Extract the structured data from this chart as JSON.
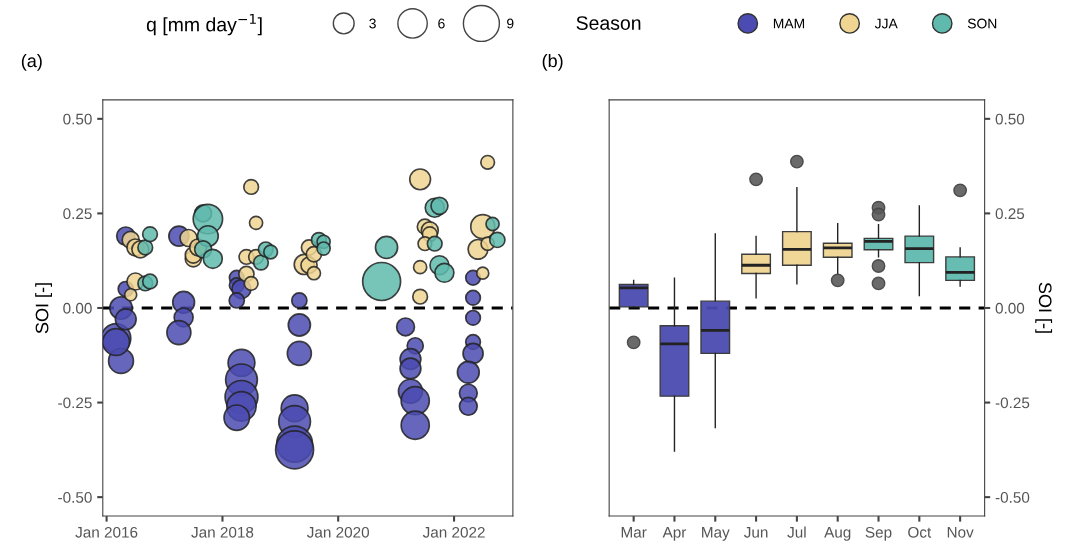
{
  "chart_data": [
    {
      "type": "bubble",
      "title": "(a)",
      "ylabel": "SOI [-]",
      "legend_title": [
        "q [mm day$^{−1}$]",
        "Season"
      ],
      "legend": "top",
      "size_legend": [
        3,
        6,
        9
      ],
      "xlim": [
        "2015-12-08",
        "2023-01-07"
      ],
      "xticks": [
        {
          "value": "2016-01-01",
          "label": "Jan 2016"
        },
        {
          "value": "2018-01-01",
          "label": "Jan 2018"
        },
        {
          "value": "2020-01-01",
          "label": "Jan 2020"
        },
        {
          "value": "2022-01-01",
          "label": "Jan 2022"
        }
      ],
      "ylim": [
        -0.55,
        0.55
      ],
      "yticks": [
        {
          "value": 0.5,
          "label": "0.50"
        },
        {
          "value": 0.25,
          "label": "0.25"
        },
        {
          "value": 0,
          "label": "0.00"
        },
        {
          "value": -0.25,
          "label": "-0.25"
        },
        {
          "value": -0.5,
          "label": "-0.50"
        }
      ],
      "ref_lines": [
        {
          "axis": "y",
          "value": 0,
          "color": "#000000",
          "line_style": "dashed"
        }
      ],
      "series": [
        {
          "name": "MAM",
          "color": "#4b4bb2",
          "x": [
            "2016-03",
            "2016-04",
            "2016-04",
            "2016-05",
            "2016-05",
            "2016-05",
            "2016-03",
            "2017-04",
            "2017-05",
            "2017-05",
            "2017-04",
            "2018-04",
            "2018-04",
            "2018-05",
            "2018-04",
            "2018-05",
            "2018-05",
            "2018-05",
            "2018-05",
            "2018-04",
            "2019-05",
            "2019-05",
            "2019-05",
            "2019-04",
            "2019-04",
            "2019-04",
            "2019-04",
            "2021-03",
            "2021-05",
            "2021-04",
            "2021-04",
            "2021-04",
            "2021-05",
            "2021-05",
            "2022-05",
            "2022-05",
            "2022-05",
            "2022-05",
            "2022-05",
            "2022-04",
            "2022-04",
            "2022-04"
          ],
          "values": [
            -0.08,
            -0.14,
            0.0,
            0.19,
            0.05,
            -0.03,
            -0.09,
            0.19,
            0.015,
            -0.025,
            -0.065,
            0.08,
            0.06,
            0.05,
            0.02,
            -0.145,
            -0.19,
            -0.235,
            -0.26,
            -0.29,
            0.02,
            -0.045,
            -0.12,
            -0.265,
            -0.3,
            -0.36,
            -0.375,
            -0.05,
            -0.1,
            -0.135,
            -0.16,
            -0.22,
            -0.245,
            -0.31,
            0.08,
            0.027,
            -0.026,
            -0.09,
            -0.12,
            -0.17,
            -0.225,
            -0.26
          ],
          "sizes": [
            6,
            4.3,
            3.5,
            2.3,
            1.6,
            3,
            5,
            2.8,
            3.3,
            2.5,
            4,
            1.5,
            1.5,
            2.5,
            1.6,
            5,
            7,
            7.5,
            6,
            4.5,
            1.6,
            3.4,
            4,
            5,
            7,
            9,
            10,
            2.2,
            1.8,
            3,
            3,
            4,
            5.5,
            5.5,
            1.5,
            1.5,
            1.5,
            1.5,
            2.8,
            3.3,
            2.2,
            2.2
          ]
        },
        {
          "name": "JJA",
          "color": "#f0d592",
          "x": [
            "2016-06",
            "2016-07",
            "2016-08",
            "2016-07",
            "2016-06",
            "2017-06",
            "2017-07",
            "2017-07",
            "2017-08",
            "2018-07",
            "2018-08",
            "2018-06",
            "2018-08",
            "2018-06",
            "2018-07",
            "2019-06",
            "2019-07",
            "2019-07",
            "2019-08",
            "2019-08",
            "2021-06",
            "2021-07",
            "2021-08",
            "2021-08",
            "2021-07",
            "2021-06",
            "2021-06",
            "2022-08",
            "2022-07",
            "2022-06",
            "2022-08",
            "2022-07"
          ],
          "values": [
            0.18,
            0.16,
            0.155,
            0.07,
            0.035,
            0.185,
            0.13,
            0.14,
            0.16,
            0.32,
            0.225,
            0.135,
            0.135,
            0.09,
            0.065,
            0.115,
            0.113,
            0.16,
            0.142,
            0.092,
            0.34,
            0.215,
            0.205,
            0.195,
            0.17,
            0.108,
            0.03,
            0.385,
            0.215,
            0.155,
            0.17,
            0.092
          ],
          "sizes": [
            2,
            2,
            2,
            2,
            1,
            2,
            1.8,
            1.8,
            2,
            1.5,
            1.2,
            1.5,
            1.5,
            1.6,
            1.3,
            2.8,
            1.8,
            1.6,
            1.6,
            1.2,
            3,
            1.6,
            2,
            1.5,
            1.3,
            1.2,
            1.5,
            1.3,
            4,
            2.7,
            1.2,
            1
          ]
        },
        {
          "name": "SON",
          "color": "#5fbaad",
          "x": [
            "2016-09",
            "2016-10",
            "2016-09",
            "2016-10",
            "2017-09",
            "2017-10",
            "2017-10",
            "2017-09",
            "2017-11",
            "2018-09",
            "2018-10",
            "2018-11",
            "2019-09",
            "2019-10",
            "2019-10",
            "2020-10",
            "2020-11",
            "2021-09",
            "2021-10",
            "2021-09",
            "2021-10",
            "2021-11",
            "2022-09",
            "2022-10"
          ],
          "values": [
            0.16,
            0.195,
            0.065,
            0.07,
            0.25,
            0.235,
            0.19,
            0.155,
            0.13,
            0.12,
            0.155,
            0.148,
            0.18,
            0.175,
            0.157,
            0.07,
            0.16,
            0.265,
            0.27,
            0.17,
            0.113,
            0.093,
            0.222,
            0.18
          ],
          "sizes": [
            1.5,
            1.5,
            1.5,
            1.5,
            2,
            6,
            3,
            2,
            2.5,
            1.5,
            1.5,
            1.3,
            1.5,
            1.2,
            1.2,
            10,
            3.4,
            2.5,
            2,
            1.5,
            2.5,
            2.5,
            1.2,
            1.6
          ]
        }
      ]
    },
    {
      "type": "box",
      "title": "(b)",
      "ylabel": "SOI [-]",
      "categories": [
        "Mar",
        "Apr",
        "May",
        "Jun",
        "Jul",
        "Aug",
        "Sep",
        "Oct",
        "Nov"
      ],
      "colors": [
        "#4b4bb2",
        "#4b4bb2",
        "#4b4bb2",
        "#f0d592",
        "#f0d592",
        "#f0d592",
        "#5fbaad",
        "#5fbaad",
        "#5fbaad"
      ],
      "ylim": [
        -0.55,
        0.55
      ],
      "yticks": [
        {
          "value": 0.5,
          "label": "0.50"
        },
        {
          "value": 0.25,
          "label": "0.25"
        },
        {
          "value": 0,
          "label": "0.00"
        },
        {
          "value": -0.25,
          "label": "-0.25"
        },
        {
          "value": -0.5,
          "label": "-0.50"
        }
      ],
      "ref_lines": [
        {
          "axis": "y",
          "value": 0,
          "color": "#000000",
          "line_style": "dashed"
        }
      ],
      "boxes": [
        {
          "low": 0.003,
          "q1": 0.003,
          "median": 0.053,
          "q3": 0.062,
          "high": 0.073,
          "outliers": [
            -0.091
          ]
        },
        {
          "low": -0.378,
          "q1": -0.233,
          "median": -0.095,
          "q3": -0.047,
          "high": 0.079
        },
        {
          "low": -0.316,
          "q1": -0.12,
          "median": -0.059,
          "q3": 0.018,
          "high": 0.196
        },
        {
          "low": 0.027,
          "q1": 0.091,
          "median": 0.113,
          "q3": 0.142,
          "high": 0.189,
          "outliers": [
            0.34
          ]
        },
        {
          "low": 0.064,
          "q1": 0.113,
          "median": 0.155,
          "q3": 0.202,
          "high": 0.318,
          "outliers": [
            0.387
          ]
        },
        {
          "low": 0.09,
          "q1": 0.134,
          "median": 0.159,
          "q3": 0.171,
          "high": 0.223,
          "outliers": [
            0.073
          ]
        },
        {
          "low": 0.135,
          "q1": 0.154,
          "median": 0.176,
          "q3": 0.184,
          "high": 0.22,
          "outliers": [
            0.265,
            0.247,
            0.111,
            0.065
          ]
        },
        {
          "low": 0.033,
          "q1": 0.12,
          "median": 0.157,
          "q3": 0.19,
          "high": 0.27
        },
        {
          "low": 0.058,
          "q1": 0.073,
          "median": 0.094,
          "q3": 0.135,
          "high": 0.159,
          "outliers": [
            0.311
          ]
        }
      ]
    }
  ]
}
